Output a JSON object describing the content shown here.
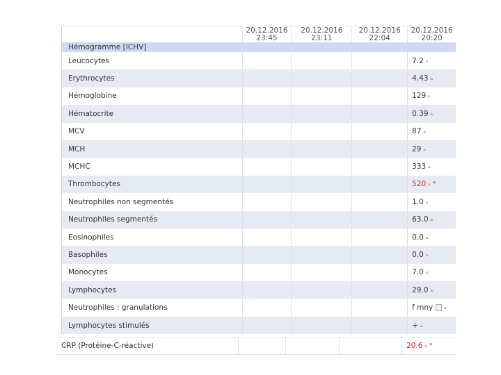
{
  "columns": [
    {
      "date": "20.12.2016",
      "time": "23:45"
    },
    {
      "date": "20.12.2016",
      "time": "23:11"
    },
    {
      "date": "20.12.2016",
      "time": "22:04"
    },
    {
      "date": "20.12.2016",
      "time": "20:20"
    }
  ],
  "group_title": "Hémogramme [ICHV]",
  "flag_icon": "triangle-icon",
  "colors": {
    "abnormal": "#d2232a",
    "row_alt": "#e6eaf2",
    "group_bg": "#cfdaf2"
  },
  "rows": [
    {
      "label": "Leucocytes",
      "value": "7.2"
    },
    {
      "label": "Erythrocytes",
      "value": "4.43"
    },
    {
      "label": "Hémoglobine",
      "value": "129"
    },
    {
      "label": "Hématocrite",
      "value": "0.39"
    },
    {
      "label": "MCV",
      "value": "87"
    },
    {
      "label": "MCH",
      "value": "29"
    },
    {
      "label": "MCHC",
      "value": "333"
    },
    {
      "label": "Thrombocytes",
      "value": "520",
      "abnormal": true,
      "star": "*"
    },
    {
      "label": "Neutrophiles non segmentés",
      "value": "1.0"
    },
    {
      "label": "Neutrophiles segmentés",
      "value": "63.0"
    },
    {
      "label": "Eosinophiles",
      "value": "0.0"
    },
    {
      "label": "Basophiles",
      "value": "0.0"
    },
    {
      "label": "Monocytes",
      "value": "7.0"
    },
    {
      "label": "Lymphocytes",
      "value": "29.0"
    },
    {
      "label": "Neutrophiles : granulations",
      "value": "f mny",
      "note": true
    },
    {
      "label": "Lymphocytes stimulés",
      "value": "+"
    }
  ],
  "crp": {
    "label": "CRP (Protéine-C-réactive)",
    "value": "20.6",
    "abnormal": true,
    "star": "*"
  },
  "flag_glyph": "▵"
}
